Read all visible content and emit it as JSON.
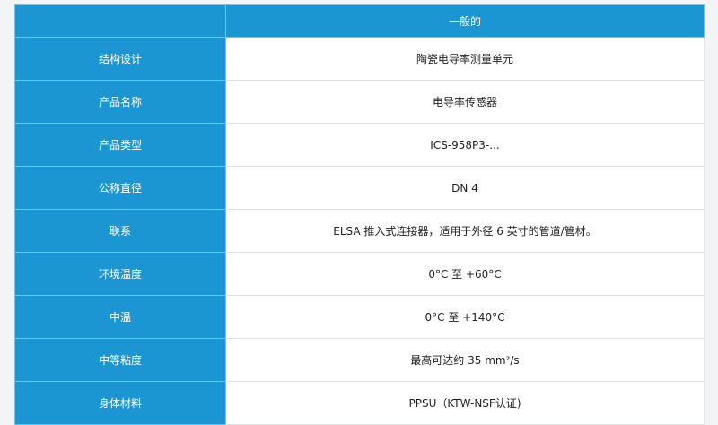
{
  "header": {
    "left": "",
    "right": "一般的"
  },
  "colors": {
    "accent": "#1b96d3"
  },
  "rows": [
    {
      "label": "结构设计",
      "value": "陶瓷电导率测量单元"
    },
    {
      "label": "产品名称",
      "value": "电导率传感器"
    },
    {
      "label": "产品类型",
      "value": "ICS-958P3-..."
    },
    {
      "label": "公称直径",
      "value": "DN 4"
    },
    {
      "label": "联系",
      "value": "ELSA 推入式连接器，适用于外径 6 英寸的管道/管材。"
    },
    {
      "label": "环境温度",
      "value": "0°C 至 +60°C"
    },
    {
      "label": "中温",
      "value": "0°C 至 +140°C"
    },
    {
      "label": "中等粘度",
      "value": "最高可达约 35 mm²/s"
    },
    {
      "label": "身体材料",
      "value": "PPSU（KTW-NSF认证)"
    }
  ]
}
